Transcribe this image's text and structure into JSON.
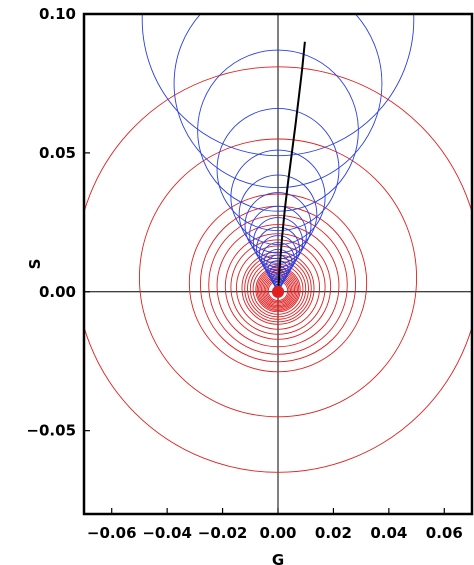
{
  "chart_data": {
    "type": "scatter",
    "title": "",
    "xlabel": "G",
    "ylabel": "S",
    "xlim": [
      -0.07,
      0.07
    ],
    "ylim": [
      -0.08,
      0.1
    ],
    "grid": false,
    "x_ticks": [
      -0.06,
      -0.04,
      -0.02,
      0.0,
      0.02,
      0.04,
      0.06
    ],
    "x_tick_labels": [
      "−0.06",
      "−0.04",
      "−0.02",
      "0.00",
      "0.02",
      "0.04",
      "0.06"
    ],
    "y_ticks": [
      -0.05,
      0.0,
      0.05,
      0.1
    ],
    "y_tick_labels": [
      "−0.05",
      "0.00",
      "0.05",
      "0.10"
    ],
    "colors": {
      "red_family": "#e02020",
      "blue_family": "#2a3fe0",
      "trajectory": "#000000",
      "frame": "#000000",
      "axes_cross": "#000000"
    },
    "series": [
      {
        "shape": "circle",
        "color": "red",
        "center_x": 0.0,
        "radii": [
          0.0035,
          0.004,
          0.0045,
          0.005,
          0.0055,
          0.006,
          0.0065,
          0.007,
          0.0075,
          0.008,
          0.009,
          0.01,
          0.011,
          0.012,
          0.013,
          0.015,
          0.017,
          0.019,
          0.022,
          0.025,
          0.028,
          0.032,
          0.05,
          0.073
        ],
        "center_y": [
          0.00035,
          0.0004,
          0.00045,
          0.0005,
          0.00055,
          0.0006,
          0.00065,
          0.0007,
          0.00075,
          0.0008,
          0.0009,
          0.001,
          0.0011,
          0.0012,
          0.0013,
          0.0015,
          0.0017,
          0.0019,
          0.0022,
          0.0025,
          0.0028,
          0.0032,
          0.005,
          0.008
        ]
      },
      {
        "shape": "circle",
        "color": "blue",
        "center_x": 0.0,
        "center_y": [
          0.0018,
          0.0025,
          0.0033,
          0.0042,
          0.0052,
          0.0063,
          0.0075,
          0.0088,
          0.0102,
          0.0118,
          0.0135,
          0.0155,
          0.0178,
          0.0205,
          0.0238,
          0.028,
          0.034,
          0.044,
          0.058,
          0.075,
          0.098
        ],
        "radii": [
          0.0009,
          0.00125,
          0.00165,
          0.0021,
          0.0026,
          0.00315,
          0.00375,
          0.0044,
          0.0051,
          0.0059,
          0.00675,
          0.00775,
          0.0089,
          0.01025,
          0.0119,
          0.014,
          0.017,
          0.022,
          0.029,
          0.0375,
          0.049
        ]
      },
      {
        "shape": "line",
        "color": "black",
        "x": [
          0.0,
          0.0007,
          0.0015,
          0.0025,
          0.0037,
          0.005,
          0.0063,
          0.0075,
          0.0087,
          0.0097
        ],
        "y": [
          0.0,
          0.01,
          0.02,
          0.03,
          0.04,
          0.05,
          0.06,
          0.07,
          0.08,
          0.09
        ]
      },
      {
        "shape": "blob",
        "color": "red",
        "center_x": 0.0,
        "center_y": 0.0,
        "radius": 0.0022
      }
    ]
  }
}
